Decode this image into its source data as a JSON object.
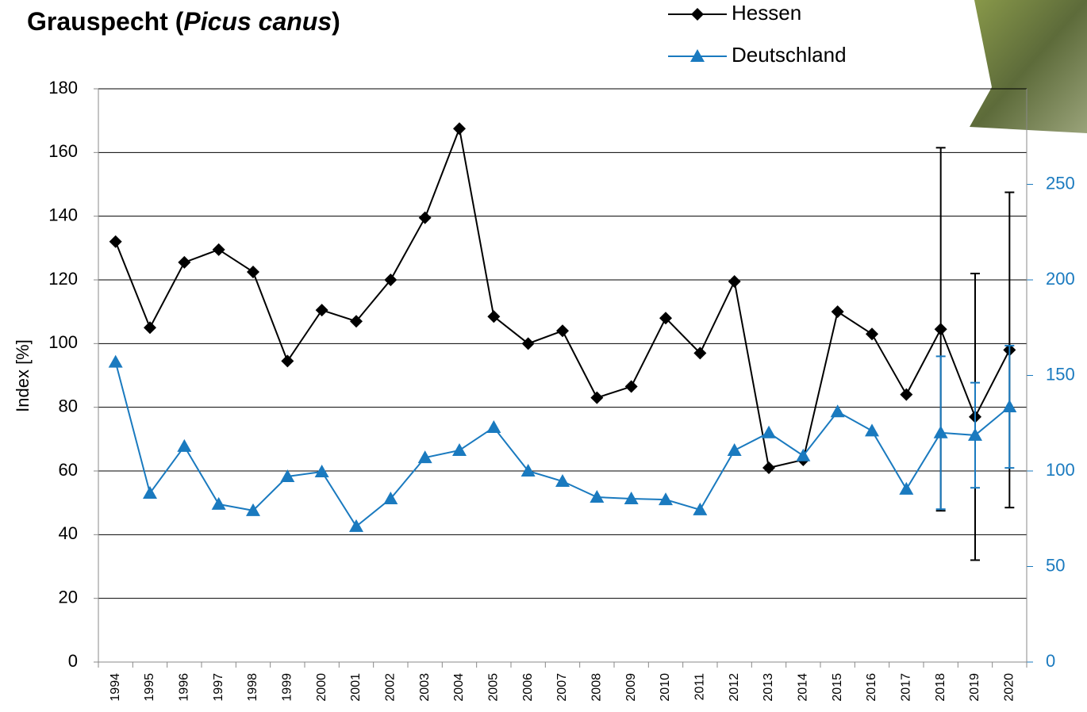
{
  "chart_data": {
    "type": "line",
    "title_parts": [
      "Grauspecht (",
      "Picus canus",
      ")"
    ],
    "ylabel": "Index [%]",
    "categories": [
      "1994",
      "1995",
      "1996",
      "1997",
      "1998",
      "1999",
      "2000",
      "2001",
      "2002",
      "2003",
      "2004",
      "2005",
      "2006",
      "2007",
      "2008",
      "2009",
      "2010",
      "2011",
      "2012",
      "2013",
      "2014",
      "2015",
      "2016",
      "2017",
      "2018",
      "2019",
      "2020"
    ],
    "series": [
      {
        "name": "Hessen",
        "color": "#000000",
        "marker": "diamond",
        "values": [
          132,
          105,
          125.5,
          129.5,
          122.5,
          94.5,
          110.5,
          107,
          120,
          139.5,
          167.5,
          108.5,
          100,
          104,
          83,
          86.5,
          108,
          97,
          119.5,
          61,
          63.5,
          110,
          103,
          84,
          104.5,
          77,
          98
        ],
        "errors": [
          null,
          null,
          null,
          null,
          null,
          null,
          null,
          null,
          null,
          null,
          null,
          null,
          null,
          null,
          null,
          null,
          null,
          null,
          null,
          null,
          null,
          null,
          null,
          null,
          57,
          45,
          49.5
        ]
      },
      {
        "name": "Deutschland",
        "color": "#1a7abf",
        "marker": "triangle",
        "axis": "y2",
        "values": [
          157,
          88.4,
          112.9,
          82.6,
          79.3,
          97.1,
          99.6,
          71,
          85.5,
          107,
          110.8,
          122.8,
          100,
          94.6,
          86.3,
          85.5,
          85,
          79.7,
          110.8,
          120,
          108,
          131,
          121,
          90.5,
          120,
          118.7,
          133.6
        ],
        "errors": [
          null,
          null,
          null,
          null,
          null,
          null,
          null,
          null,
          null,
          null,
          null,
          null,
          null,
          null,
          null,
          null,
          null,
          null,
          null,
          null,
          null,
          null,
          null,
          null,
          40,
          27.5,
          32
        ]
      }
    ],
    "ylim": [
      0,
      180
    ],
    "yticks": [
      0,
      20,
      40,
      60,
      80,
      100,
      120,
      140,
      160,
      180
    ],
    "y2lim": [
      0,
      300
    ],
    "y2ticks": [
      0,
      50,
      100,
      150,
      200,
      250
    ],
    "grid": true,
    "y2color": "#1a7abf"
  }
}
